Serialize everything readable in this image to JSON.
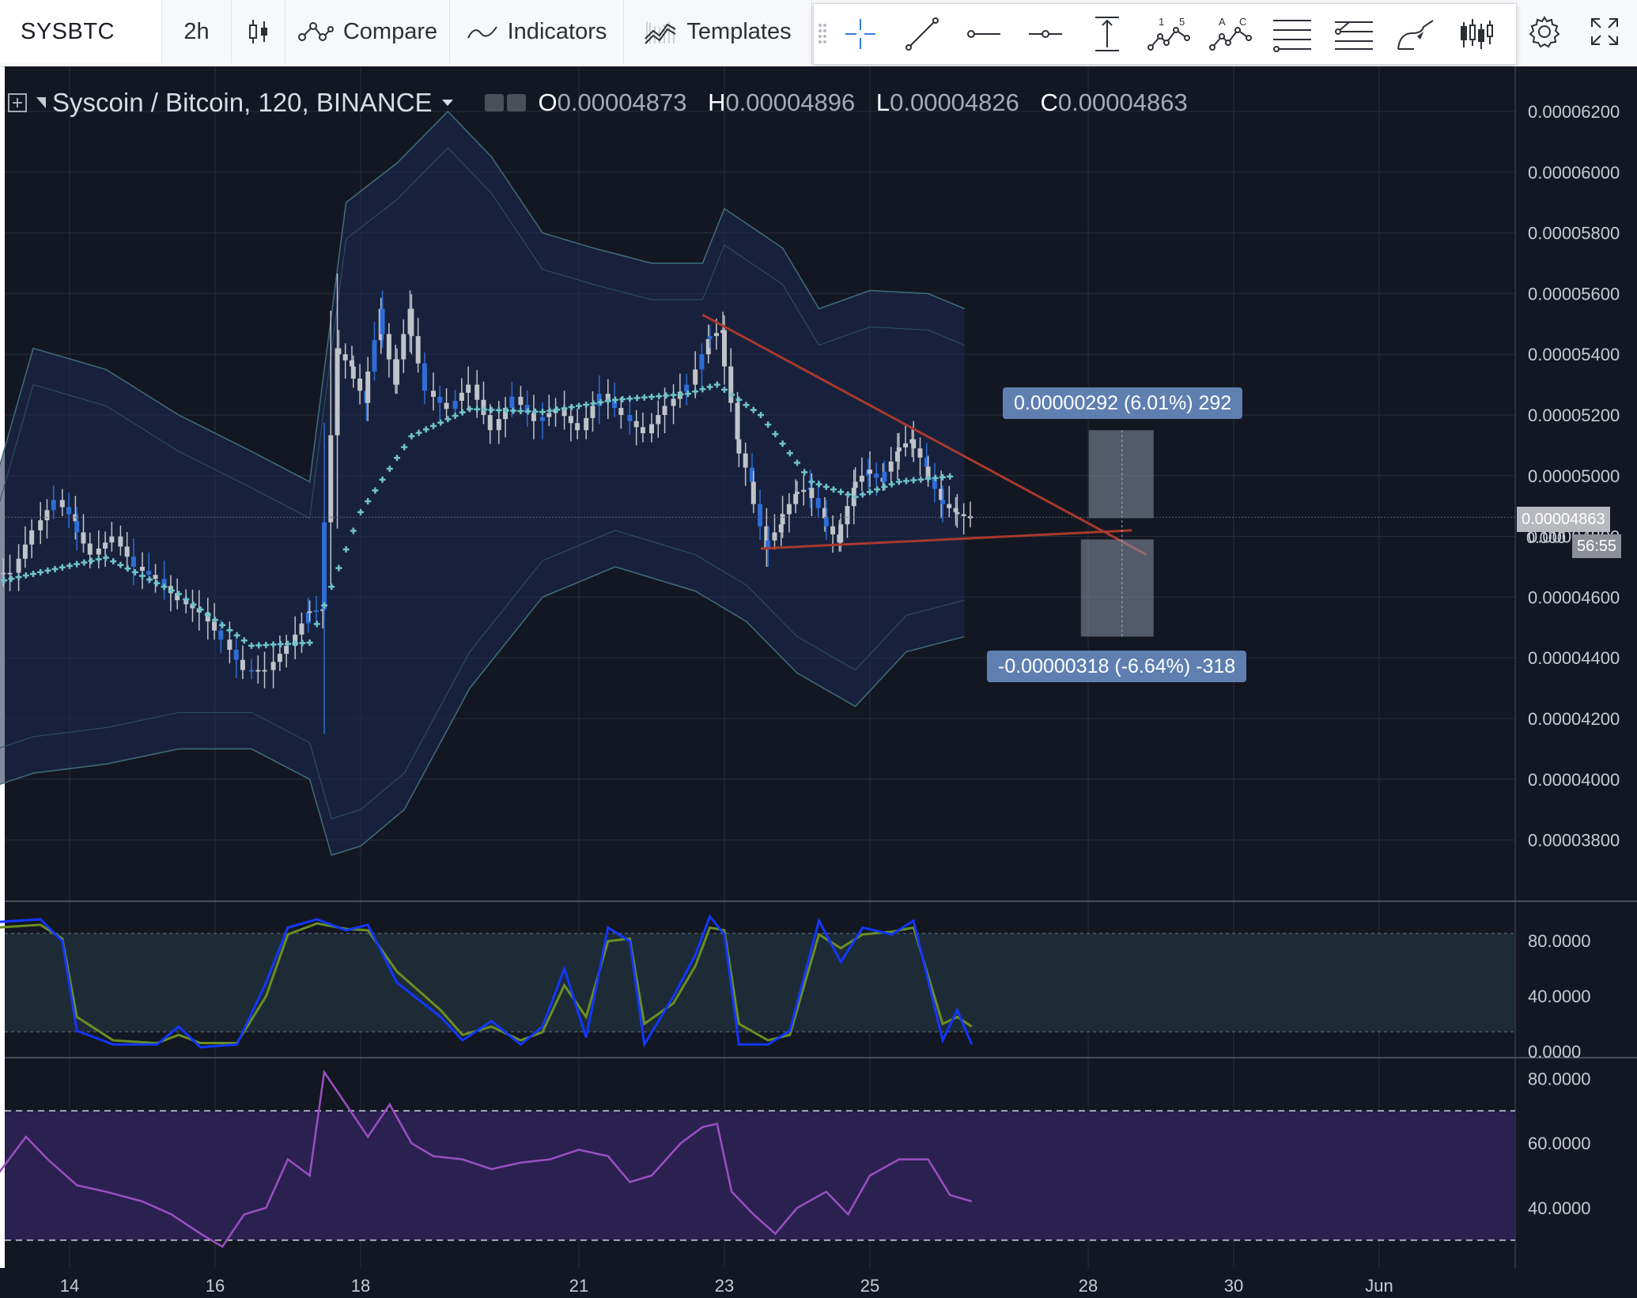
{
  "toolbar": {
    "symbol": "SYSBTC",
    "interval": "2h",
    "compare_label": "Compare",
    "indicators_label": "Indicators",
    "templates_label": "Templates",
    "drawing_tools": [
      "crosshair-icon",
      "trend-line-icon",
      "horizontal-ray-icon",
      "horizontal-line-icon",
      "vertical-range-icon",
      "wave-15-icon",
      "wave-ac-icon",
      "parallel-channel-icon",
      "fib-retracement-icon",
      "brush-icon",
      "long-position-icon"
    ],
    "gear_icon": "gear-icon",
    "fullscreen_icon": "fullscreen-icon"
  },
  "legend": {
    "title": "Syscoin / Bitcoin, 120, BINANCE",
    "o_key": "O",
    "o_val": "0.00004873",
    "h_key": "H",
    "h_val": "0.00004896",
    "l_key": "L",
    "l_val": "0.00004826",
    "c_key": "C",
    "c_val": "0.00004863"
  },
  "measure": {
    "upper_label": "0.00000292 (6.01%) 292",
    "lower_label": "-0.00000318 (-6.64%) -318"
  },
  "price_marker": {
    "price": "0.00004863",
    "timer": "56:55",
    "hidden_tick": "0.000"
  },
  "colors": {
    "background": "#131722",
    "grid": "#2a2e39",
    "candle": "#c0c3ca",
    "candle_blue": "#2e6dd6",
    "ma": "#6fc4c8",
    "band": "#1e2a52",
    "trendline": "#a83a2c",
    "stoch_k": "#1237ff",
    "stoch_d": "#6b8e23",
    "rsi": "#9b4fc2",
    "rsi_band": "#2b2150"
  },
  "chart_data": [
    {
      "type": "candlestick",
      "title": "Syscoin / Bitcoin, 120, BINANCE",
      "ylim": [
        3.6e-05,
        6.25e-05
      ],
      "yticks": [
        "0.00006200",
        "0.00006000",
        "0.00005800",
        "0.00005600",
        "0.00005400",
        "0.00005200",
        "0.00005000",
        "0.00004800",
        "0.00004600",
        "0.00004400",
        "0.00004200",
        "0.00004000",
        "0.00003800"
      ],
      "xticks": [
        "14",
        "16",
        "18",
        "21",
        "23",
        "25",
        "28",
        "30",
        "Jun"
      ],
      "close_series": [
        {
          "d": 13.0,
          "c": 4.68e-05
        },
        {
          "d": 13.3,
          "c": 4.82e-05
        },
        {
          "d": 13.6,
          "c": 4.92e-05
        },
        {
          "d": 13.9,
          "c": 4.85e-05
        },
        {
          "d": 14.1,
          "c": 4.74e-05
        },
        {
          "d": 14.4,
          "c": 4.8e-05
        },
        {
          "d": 14.7,
          "c": 4.7e-05
        },
        {
          "d": 15.0,
          "c": 4.66e-05
        },
        {
          "d": 15.3,
          "c": 4.59e-05
        },
        {
          "d": 15.6,
          "c": 4.55e-05
        },
        {
          "d": 15.9,
          "c": 4.46e-05
        },
        {
          "d": 16.2,
          "c": 4.36e-05
        },
        {
          "d": 16.5,
          "c": 4.36e-05
        },
        {
          "d": 16.8,
          "c": 4.44e-05
        },
        {
          "d": 17.1,
          "c": 4.55e-05
        },
        {
          "d": 17.3,
          "c": 4.56e-05
        },
        {
          "d": 17.5,
          "c": 5.42e-05
        },
        {
          "d": 17.7,
          "c": 5.36e-05
        },
        {
          "d": 17.9,
          "c": 5.24e-05
        },
        {
          "d": 18.1,
          "c": 5.55e-05
        },
        {
          "d": 18.3,
          "c": 5.3e-05
        },
        {
          "d": 18.5,
          "c": 5.55e-05
        },
        {
          "d": 18.7,
          "c": 5.28e-05
        },
        {
          "d": 19.0,
          "c": 5.22e-05
        },
        {
          "d": 19.3,
          "c": 5.3e-05
        },
        {
          "d": 19.6,
          "c": 5.15e-05
        },
        {
          "d": 19.9,
          "c": 5.26e-05
        },
        {
          "d": 20.2,
          "c": 5.18e-05
        },
        {
          "d": 20.5,
          "c": 5.22e-05
        },
        {
          "d": 20.8,
          "c": 5.15e-05
        },
        {
          "d": 21.1,
          "c": 5.27e-05
        },
        {
          "d": 21.4,
          "c": 5.2e-05
        },
        {
          "d": 21.7,
          "c": 5.14e-05
        },
        {
          "d": 22.0,
          "c": 5.23e-05
        },
        {
          "d": 22.3,
          "c": 5.3e-05
        },
        {
          "d": 22.6,
          "c": 5.45e-05
        },
        {
          "d": 22.8,
          "c": 5.48e-05
        },
        {
          "d": 23.0,
          "c": 5.12e-05
        },
        {
          "d": 23.2,
          "c": 4.98e-05
        },
        {
          "d": 23.4,
          "c": 4.76e-05
        },
        {
          "d": 23.6,
          "c": 4.84e-05
        },
        {
          "d": 23.8,
          "c": 4.94e-05
        },
        {
          "d": 24.0,
          "c": 4.96e-05
        },
        {
          "d": 24.2,
          "c": 4.86e-05
        },
        {
          "d": 24.4,
          "c": 4.78e-05
        },
        {
          "d": 24.6,
          "c": 4.96e-05
        },
        {
          "d": 24.8,
          "c": 5.02e-05
        },
        {
          "d": 25.0,
          "c": 4.98e-05
        },
        {
          "d": 25.2,
          "c": 5.08e-05
        },
        {
          "d": 25.4,
          "c": 5.12e-05
        },
        {
          "d": 25.6,
          "c": 5.03e-05
        },
        {
          "d": 25.8,
          "c": 4.92e-05
        },
        {
          "d": 26.0,
          "c": 4.88e-05
        },
        {
          "d": 26.2,
          "c": 4.86e-05
        }
      ],
      "moving_average": [
        {
          "d": 13.0,
          "v": 4.65e-05
        },
        {
          "d": 14.5,
          "v": 4.73e-05
        },
        {
          "d": 15.5,
          "v": 4.61e-05
        },
        {
          "d": 16.5,
          "v": 4.44e-05
        },
        {
          "d": 17.3,
          "v": 4.45e-05
        },
        {
          "d": 18.0,
          "v": 4.88e-05
        },
        {
          "d": 18.7,
          "v": 5.13e-05
        },
        {
          "d": 19.5,
          "v": 5.22e-05
        },
        {
          "d": 20.5,
          "v": 5.21e-05
        },
        {
          "d": 21.5,
          "v": 5.25e-05
        },
        {
          "d": 22.5,
          "v": 5.27e-05
        },
        {
          "d": 22.9,
          "v": 5.3e-05
        },
        {
          "d": 23.5,
          "v": 5.2e-05
        },
        {
          "d": 24.2,
          "v": 4.98e-05
        },
        {
          "d": 24.8,
          "v": 4.93e-05
        },
        {
          "d": 25.4,
          "v": 4.98e-05
        },
        {
          "d": 26.2,
          "v": 5e-05
        }
      ],
      "trendlines": [
        {
          "from": {
            "d": 22.7,
            "v": 5.53e-05
          },
          "to": {
            "d": 28.8,
            "v": 4.74e-05
          }
        },
        {
          "from": {
            "d": 23.5,
            "v": 4.76e-05
          },
          "to": {
            "d": 28.6,
            "v": 4.82e-05
          }
        }
      ],
      "measure_box": {
        "d_start": 27.9,
        "d_end": 28.9,
        "top": 5.15e-05,
        "mid_hi": 4.86e-05,
        "mid_lo": 4.79e-05,
        "bottom": 4.47e-05
      }
    },
    {
      "type": "line",
      "name": "stochastic",
      "ylim": [
        0,
        100
      ],
      "yticks": [
        "80.0000",
        "40.0000",
        "0.0000"
      ],
      "k": [
        [
          13.0,
          94
        ],
        [
          13.6,
          96
        ],
        [
          13.9,
          80
        ],
        [
          14.1,
          15
        ],
        [
          14.6,
          5
        ],
        [
          15.2,
          5
        ],
        [
          15.5,
          18
        ],
        [
          15.8,
          3
        ],
        [
          16.3,
          5
        ],
        [
          16.7,
          50
        ],
        [
          17.0,
          90
        ],
        [
          17.4,
          96
        ],
        [
          17.8,
          88
        ],
        [
          18.1,
          92
        ],
        [
          18.5,
          50
        ],
        [
          19.1,
          25
        ],
        [
          19.4,
          8
        ],
        [
          19.8,
          22
        ],
        [
          20.2,
          5
        ],
        [
          20.5,
          18
        ],
        [
          20.8,
          60
        ],
        [
          21.1,
          10
        ],
        [
          21.4,
          90
        ],
        [
          21.7,
          80
        ],
        [
          21.9,
          5
        ],
        [
          22.3,
          40
        ],
        [
          22.6,
          70
        ],
        [
          22.8,
          98
        ],
        [
          23.0,
          85
        ],
        [
          23.2,
          5
        ],
        [
          23.6,
          5
        ],
        [
          23.9,
          15
        ],
        [
          24.3,
          95
        ],
        [
          24.6,
          65
        ],
        [
          24.9,
          90
        ],
        [
          25.3,
          85
        ],
        [
          25.6,
          95
        ],
        [
          26.0,
          8
        ],
        [
          26.2,
          30
        ],
        [
          26.4,
          5
        ]
      ],
      "d": [
        [
          13.0,
          90
        ],
        [
          13.6,
          92
        ],
        [
          13.9,
          82
        ],
        [
          14.1,
          25
        ],
        [
          14.6,
          8
        ],
        [
          15.2,
          6
        ],
        [
          15.5,
          12
        ],
        [
          15.8,
          6
        ],
        [
          16.3,
          6
        ],
        [
          16.7,
          40
        ],
        [
          17.0,
          85
        ],
        [
          17.4,
          93
        ],
        [
          17.8,
          89
        ],
        [
          18.1,
          88
        ],
        [
          18.5,
          58
        ],
        [
          19.1,
          30
        ],
        [
          19.4,
          12
        ],
        [
          19.8,
          18
        ],
        [
          20.2,
          8
        ],
        [
          20.5,
          14
        ],
        [
          20.8,
          48
        ],
        [
          21.1,
          25
        ],
        [
          21.4,
          80
        ],
        [
          21.7,
          82
        ],
        [
          21.9,
          20
        ],
        [
          22.3,
          35
        ],
        [
          22.6,
          62
        ],
        [
          22.8,
          90
        ],
        [
          23.0,
          88
        ],
        [
          23.2,
          20
        ],
        [
          23.6,
          8
        ],
        [
          23.9,
          12
        ],
        [
          24.3,
          85
        ],
        [
          24.6,
          75
        ],
        [
          24.9,
          85
        ],
        [
          25.3,
          87
        ],
        [
          25.6,
          90
        ],
        [
          26.0,
          20
        ],
        [
          26.2,
          25
        ],
        [
          26.4,
          18
        ]
      ]
    },
    {
      "type": "line",
      "name": "rsi",
      "ylim": [
        25,
        85
      ],
      "yticks": [
        "80.0000",
        "60.0000",
        "40.0000"
      ],
      "values": [
        [
          13.0,
          50
        ],
        [
          13.4,
          62
        ],
        [
          13.7,
          55
        ],
        [
          14.1,
          47
        ],
        [
          14.5,
          45
        ],
        [
          15.0,
          42
        ],
        [
          15.4,
          38
        ],
        [
          15.8,
          32
        ],
        [
          16.1,
          28
        ],
        [
          16.4,
          38
        ],
        [
          16.7,
          40
        ],
        [
          17.0,
          55
        ],
        [
          17.3,
          50
        ],
        [
          17.5,
          82
        ],
        [
          17.8,
          72
        ],
        [
          18.1,
          62
        ],
        [
          18.4,
          72
        ],
        [
          18.7,
          60
        ],
        [
          19.0,
          56
        ],
        [
          19.4,
          55
        ],
        [
          19.8,
          52
        ],
        [
          20.2,
          54
        ],
        [
          20.6,
          55
        ],
        [
          21.0,
          58
        ],
        [
          21.4,
          56
        ],
        [
          21.7,
          48
        ],
        [
          22.0,
          50
        ],
        [
          22.4,
          60
        ],
        [
          22.7,
          65
        ],
        [
          22.9,
          66
        ],
        [
          23.1,
          45
        ],
        [
          23.4,
          38
        ],
        [
          23.7,
          32
        ],
        [
          24.0,
          40
        ],
        [
          24.4,
          45
        ],
        [
          24.7,
          38
        ],
        [
          25.0,
          50
        ],
        [
          25.4,
          55
        ],
        [
          25.8,
          55
        ],
        [
          26.1,
          44
        ],
        [
          26.4,
          42
        ]
      ]
    }
  ]
}
